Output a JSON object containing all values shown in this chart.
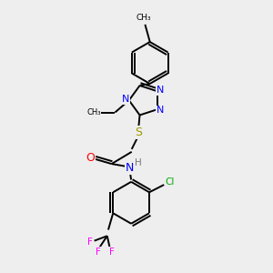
{
  "background_color": "#eeeeee",
  "bond_color": "#000000",
  "atom_colors": {
    "N": "#0000FF",
    "O": "#FF0000",
    "S": "#999900",
    "Cl": "#00AA00",
    "F": "#FF00FF",
    "H": "#777777",
    "C": "#000000"
  },
  "figsize": [
    3.0,
    3.0
  ],
  "dpi": 100
}
